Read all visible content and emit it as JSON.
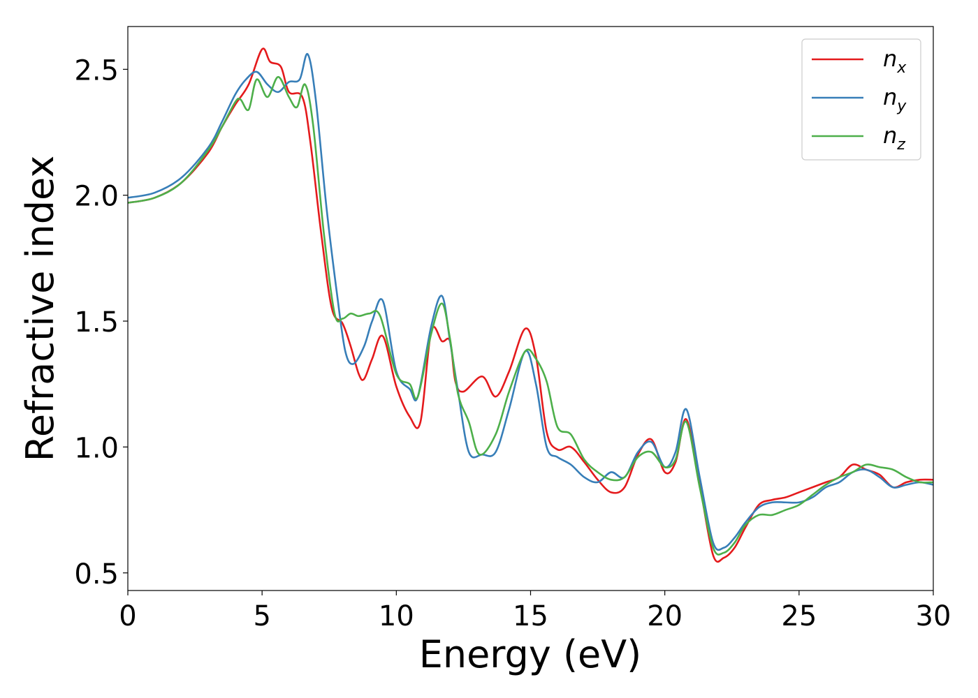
{
  "chart_data": {
    "type": "line",
    "title": "",
    "xlabel": "Energy (eV)",
    "ylabel": "Refractive index",
    "xlim": [
      0,
      30
    ],
    "ylim": [
      0.43,
      2.67
    ],
    "x_ticks": [
      0,
      5,
      10,
      15,
      20,
      25,
      30
    ],
    "x_tick_labels": [
      "0",
      "5",
      "10",
      "15",
      "20",
      "25",
      "30"
    ],
    "y_ticks": [
      0.5,
      1.0,
      1.5,
      2.0,
      2.5
    ],
    "y_tick_labels": [
      "0.5",
      "1.0",
      "1.5",
      "2.0",
      "2.5"
    ],
    "grid": false,
    "legend_position": "top-right",
    "series": [
      {
        "name": "n",
        "subscript": "x",
        "color": "#e41a1c",
        "x": [
          0,
          1,
          2,
          3,
          3.5,
          4,
          4.5,
          5,
          5.3,
          5.7,
          6,
          6.5,
          6.8,
          7.2,
          7.6,
          8,
          8.3,
          8.6,
          8.8,
          9.1,
          9.5,
          10,
          10.5,
          10.9,
          11.3,
          11.7,
          12,
          12.2,
          12.5,
          13.2,
          13.7,
          14.2,
          14.8,
          15.2,
          15.6,
          16,
          16.5,
          17,
          17.5,
          18,
          18.5,
          19,
          19.5,
          20,
          20.4,
          20.8,
          21.3,
          21.8,
          22.2,
          22.6,
          23,
          23.5,
          24,
          24.5,
          25,
          25.5,
          26,
          26.5,
          27,
          27.5,
          28,
          28.5,
          29,
          29.5,
          30
        ],
        "y": [
          1.97,
          1.99,
          2.05,
          2.17,
          2.27,
          2.36,
          2.44,
          2.58,
          2.53,
          2.51,
          2.41,
          2.39,
          2.21,
          1.85,
          1.55,
          1.49,
          1.4,
          1.29,
          1.27,
          1.35,
          1.44,
          1.24,
          1.12,
          1.1,
          1.46,
          1.42,
          1.42,
          1.26,
          1.22,
          1.28,
          1.2,
          1.3,
          1.47,
          1.36,
          1.06,
          0.99,
          1.0,
          0.94,
          0.87,
          0.82,
          0.84,
          0.97,
          1.03,
          0.9,
          0.94,
          1.11,
          0.85,
          0.57,
          0.56,
          0.6,
          0.68,
          0.77,
          0.79,
          0.8,
          0.82,
          0.84,
          0.86,
          0.88,
          0.93,
          0.91,
          0.89,
          0.84,
          0.86,
          0.87,
          0.87
        ]
      },
      {
        "name": "n",
        "subscript": "y",
        "color": "#377eb8",
        "x": [
          0,
          1,
          2,
          3,
          3.5,
          4,
          4.4,
          4.8,
          5.2,
          5.6,
          6,
          6.4,
          6.7,
          7,
          7.4,
          7.8,
          8.1,
          8.4,
          8.8,
          9.1,
          9.5,
          10,
          10.5,
          10.8,
          11.3,
          11.7,
          12,
          12.3,
          12.7,
          13.2,
          13.7,
          14.2,
          14.8,
          15.2,
          15.6,
          16,
          16.5,
          17,
          17.5,
          18,
          18.5,
          19,
          19.5,
          20,
          20.4,
          20.8,
          21.3,
          21.8,
          22.2,
          22.6,
          23,
          23.5,
          24,
          24.5,
          25,
          25.5,
          26,
          26.5,
          27,
          27.5,
          28,
          28.5,
          29,
          29.5,
          30
        ],
        "y": [
          1.99,
          2.01,
          2.07,
          2.19,
          2.29,
          2.4,
          2.46,
          2.49,
          2.44,
          2.41,
          2.45,
          2.46,
          2.56,
          2.38,
          1.95,
          1.6,
          1.38,
          1.33,
          1.4,
          1.5,
          1.58,
          1.3,
          1.23,
          1.2,
          1.48,
          1.6,
          1.42,
          1.22,
          0.98,
          0.97,
          0.98,
          1.15,
          1.38,
          1.25,
          1.0,
          0.96,
          0.93,
          0.88,
          0.86,
          0.9,
          0.88,
          0.98,
          1.02,
          0.92,
          0.98,
          1.15,
          0.88,
          0.62,
          0.6,
          0.64,
          0.7,
          0.76,
          0.78,
          0.78,
          0.78,
          0.8,
          0.84,
          0.86,
          0.9,
          0.91,
          0.88,
          0.84,
          0.85,
          0.86,
          0.85
        ]
      },
      {
        "name": "n",
        "subscript": "z",
        "color": "#4daf4a",
        "x": [
          0,
          1,
          2,
          3,
          3.5,
          4,
          4.2,
          4.5,
          4.8,
          5.2,
          5.6,
          6,
          6.3,
          6.6,
          6.9,
          7.3,
          7.7,
          8,
          8.3,
          8.6,
          9,
          9.4,
          10,
          10.5,
          10.8,
          11.3,
          11.7,
          12,
          12.3,
          12.7,
          13.1,
          13.7,
          14.2,
          14.8,
          15.2,
          15.6,
          16,
          16.5,
          17,
          17.5,
          18,
          18.5,
          19,
          19.5,
          20,
          20.4,
          20.8,
          21.3,
          21.8,
          22.2,
          22.6,
          23,
          23.5,
          24,
          24.5,
          25,
          25.5,
          26,
          26.5,
          27,
          27.5,
          28,
          28.5,
          29,
          29.5,
          30
        ],
        "y": [
          1.97,
          1.99,
          2.05,
          2.18,
          2.27,
          2.37,
          2.38,
          2.34,
          2.46,
          2.39,
          2.47,
          2.39,
          2.35,
          2.44,
          2.28,
          1.85,
          1.53,
          1.51,
          1.53,
          1.52,
          1.53,
          1.52,
          1.29,
          1.25,
          1.2,
          1.45,
          1.57,
          1.43,
          1.21,
          1.1,
          0.97,
          1.05,
          1.22,
          1.38,
          1.35,
          1.26,
          1.08,
          1.05,
          0.95,
          0.9,
          0.87,
          0.88,
          0.96,
          0.98,
          0.92,
          0.95,
          1.1,
          0.84,
          0.6,
          0.58,
          0.62,
          0.69,
          0.73,
          0.73,
          0.75,
          0.77,
          0.81,
          0.85,
          0.88,
          0.9,
          0.93,
          0.92,
          0.91,
          0.88,
          0.86,
          0.86
        ]
      }
    ]
  }
}
